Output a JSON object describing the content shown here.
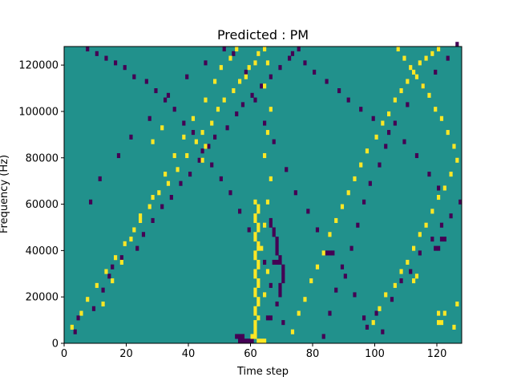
{
  "chart_data": {
    "type": "heatmap",
    "title": "Predicted : PM",
    "xlabel": "Time step",
    "ylabel": "Frequency (Hz)",
    "xlim": [
      0,
      128
    ],
    "ylim": [
      0,
      128000
    ],
    "x_ticks": [
      0,
      20,
      40,
      60,
      80,
      100,
      120
    ],
    "x_tick_labels": [
      "0",
      "20",
      "40",
      "60",
      "80",
      "100",
      "120"
    ],
    "y_ticks": [
      0,
      20000,
      40000,
      60000,
      80000,
      100000,
      120000
    ],
    "y_tick_labels": [
      "0",
      "20000",
      "40000",
      "60000",
      "80000",
      "100000",
      "120000"
    ],
    "grid": false,
    "legend": "none",
    "colormap": "viridis",
    "n_time_steps": 128,
    "n_freq_bins": 64,
    "freq_bin_width_hz": 2000,
    "colors": {
      "background": "#21918c",
      "low": "#440154",
      "high": "#fde725"
    },
    "low_cells": [
      [
        3,
        2
      ],
      [
        4,
        5
      ],
      [
        9,
        7
      ],
      [
        12,
        11
      ],
      [
        14,
        14
      ],
      [
        15,
        16
      ],
      [
        18,
        18
      ],
      [
        23,
        20
      ],
      [
        25,
        23
      ],
      [
        28,
        26
      ],
      [
        31,
        29
      ],
      [
        34,
        31
      ],
      [
        37,
        34
      ],
      [
        40,
        36
      ],
      [
        43,
        39
      ],
      [
        46,
        42
      ],
      [
        48,
        44
      ],
      [
        52,
        46
      ],
      [
        55,
        49
      ],
      [
        57,
        51
      ],
      [
        60,
        53
      ],
      [
        63,
        55
      ],
      [
        66,
        57
      ],
      [
        69,
        59
      ],
      [
        72,
        61
      ],
      [
        75,
        63
      ],
      [
        97,
        3
      ],
      [
        100,
        6
      ],
      [
        105,
        9
      ],
      [
        108,
        13
      ],
      [
        111,
        15
      ],
      [
        114,
        19
      ],
      [
        118,
        22
      ],
      [
        121,
        25
      ],
      [
        124,
        27
      ],
      [
        127,
        30
      ],
      [
        120,
        33
      ],
      [
        117,
        36
      ],
      [
        113,
        40
      ],
      [
        109,
        43
      ],
      [
        104,
        45
      ],
      [
        99,
        48
      ],
      [
        95,
        50
      ],
      [
        91,
        52
      ],
      [
        88,
        54
      ],
      [
        84,
        56
      ],
      [
        80,
        58
      ],
      [
        77,
        60
      ],
      [
        73,
        62
      ],
      [
        70,
        4
      ],
      [
        68,
        8
      ],
      [
        66,
        12
      ],
      [
        64,
        17
      ],
      [
        62,
        21
      ],
      [
        59,
        24
      ],
      [
        56,
        28
      ],
      [
        53,
        32
      ],
      [
        50,
        35
      ],
      [
        47,
        38
      ],
      [
        44,
        41
      ],
      [
        41,
        45
      ],
      [
        38,
        47
      ],
      [
        35,
        50
      ],
      [
        32,
        52
      ],
      [
        29,
        54
      ],
      [
        26,
        56
      ],
      [
        22,
        57
      ],
      [
        19,
        59
      ],
      [
        16,
        60
      ],
      [
        13,
        61
      ],
      [
        10,
        62
      ],
      [
        7,
        63
      ],
      [
        69,
        10
      ],
      [
        69,
        11
      ],
      [
        69,
        12
      ],
      [
        70,
        13
      ],
      [
        70,
        14
      ],
      [
        70,
        15
      ],
      [
        70,
        16
      ],
      [
        69,
        17
      ],
      [
        69,
        18
      ],
      [
        68,
        19
      ],
      [
        68,
        20
      ],
      [
        68,
        21
      ],
      [
        68,
        22
      ],
      [
        67,
        23
      ],
      [
        67,
        24
      ],
      [
        66,
        25
      ],
      [
        66,
        26
      ],
      [
        83,
        1
      ],
      [
        85,
        6
      ],
      [
        87,
        11
      ],
      [
        89,
        16
      ],
      [
        92,
        20
      ],
      [
        94,
        25
      ],
      [
        96,
        30
      ],
      [
        98,
        34
      ],
      [
        101,
        38
      ],
      [
        103,
        42
      ],
      [
        106,
        47
      ],
      [
        110,
        51
      ],
      [
        115,
        55
      ],
      [
        119,
        58
      ],
      [
        123,
        61
      ],
      [
        126,
        64
      ],
      [
        8,
        30
      ],
      [
        11,
        35
      ],
      [
        17,
        40
      ],
      [
        21,
        44
      ],
      [
        27,
        48
      ],
      [
        33,
        53
      ],
      [
        39,
        57
      ],
      [
        45,
        60
      ],
      [
        51,
        63
      ],
      [
        54,
        62
      ],
      [
        58,
        58
      ],
      [
        61,
        52
      ],
      [
        64,
        47
      ],
      [
        67,
        43
      ],
      [
        71,
        37
      ],
      [
        74,
        32
      ],
      [
        78,
        28
      ],
      [
        81,
        24
      ],
      [
        86,
        19
      ],
      [
        90,
        14
      ],
      [
        93,
        10
      ],
      [
        96,
        5
      ],
      [
        102,
        2
      ],
      [
        67,
        17
      ],
      [
        68,
        17
      ],
      [
        65,
        5
      ],
      [
        66,
        5
      ],
      [
        119,
        20
      ],
      [
        120,
        20
      ],
      [
        121,
        22
      ],
      [
        122,
        22
      ],
      [
        84,
        19
      ],
      [
        85,
        19
      ],
      [
        55,
        1
      ],
      [
        56,
        1
      ],
      [
        57,
        0
      ],
      [
        58,
        0
      ],
      [
        59,
        0
      ],
      [
        60,
        0
      ],
      [
        56,
        0
      ],
      [
        57,
        1
      ]
    ],
    "high_cells": [
      [
        60,
        1
      ],
      [
        61,
        1
      ],
      [
        62,
        0
      ],
      [
        63,
        0
      ],
      [
        64,
        0
      ],
      [
        61,
        2
      ],
      [
        61,
        3
      ],
      [
        61,
        4
      ],
      [
        62,
        5
      ],
      [
        61,
        6
      ],
      [
        61,
        7
      ],
      [
        62,
        8
      ],
      [
        62,
        9
      ],
      [
        61,
        10
      ],
      [
        61,
        11
      ],
      [
        62,
        12
      ],
      [
        62,
        13
      ],
      [
        61,
        14
      ],
      [
        61,
        15
      ],
      [
        62,
        16
      ],
      [
        62,
        17
      ],
      [
        61,
        18
      ],
      [
        61,
        19
      ],
      [
        62,
        20
      ],
      [
        62,
        21
      ],
      [
        61,
        22
      ],
      [
        61,
        23
      ],
      [
        62,
        24
      ],
      [
        62,
        25
      ],
      [
        61,
        26
      ],
      [
        61,
        27
      ],
      [
        62,
        28
      ],
      [
        62,
        29
      ],
      [
        61,
        30
      ],
      [
        64,
        10
      ],
      [
        65,
        15
      ],
      [
        63,
        20
      ],
      [
        64,
        25
      ],
      [
        65,
        30
      ],
      [
        66,
        35
      ],
      [
        64,
        40
      ],
      [
        65,
        45
      ],
      [
        66,
        50
      ],
      [
        64,
        55
      ],
      [
        65,
        60
      ],
      [
        2,
        3
      ],
      [
        5,
        6
      ],
      [
        7,
        9
      ],
      [
        10,
        12
      ],
      [
        13,
        15
      ],
      [
        16,
        18
      ],
      [
        19,
        21
      ],
      [
        22,
        24
      ],
      [
        24,
        27
      ],
      [
        27,
        29
      ],
      [
        30,
        32
      ],
      [
        33,
        34
      ],
      [
        36,
        37
      ],
      [
        39,
        40
      ],
      [
        42,
        43
      ],
      [
        44,
        45
      ],
      [
        47,
        47
      ],
      [
        49,
        50
      ],
      [
        51,
        52
      ],
      [
        54,
        54
      ],
      [
        56,
        56
      ],
      [
        58,
        57
      ],
      [
        59,
        59
      ],
      [
        61,
        60
      ],
      [
        62,
        62
      ],
      [
        64,
        63
      ],
      [
        99,
        4
      ],
      [
        101,
        7
      ],
      [
        103,
        10
      ],
      [
        106,
        12
      ],
      [
        108,
        15
      ],
      [
        110,
        17
      ],
      [
        112,
        20
      ],
      [
        114,
        23
      ],
      [
        116,
        25
      ],
      [
        118,
        28
      ],
      [
        120,
        31
      ],
      [
        122,
        33
      ],
      [
        124,
        36
      ],
      [
        126,
        39
      ],
      [
        125,
        42
      ],
      [
        123,
        45
      ],
      [
        121,
        48
      ],
      [
        119,
        50
      ],
      [
        117,
        53
      ],
      [
        115,
        55
      ],
      [
        113,
        57
      ],
      [
        111,
        59
      ],
      [
        109,
        61
      ],
      [
        107,
        63
      ],
      [
        73,
        2
      ],
      [
        75,
        6
      ],
      [
        77,
        9
      ],
      [
        79,
        13
      ],
      [
        81,
        16
      ],
      [
        83,
        19
      ],
      [
        85,
        23
      ],
      [
        87,
        26
      ],
      [
        89,
        29
      ],
      [
        91,
        32
      ],
      [
        93,
        35
      ],
      [
        95,
        38
      ],
      [
        97,
        41
      ],
      [
        100,
        44
      ],
      [
        102,
        47
      ],
      [
        104,
        49
      ],
      [
        106,
        52
      ],
      [
        108,
        54
      ],
      [
        110,
        56
      ],
      [
        112,
        58
      ],
      [
        114,
        60
      ],
      [
        116,
        61
      ],
      [
        118,
        62
      ],
      [
        120,
        63
      ],
      [
        12,
        8
      ],
      [
        15,
        13
      ],
      [
        18,
        17
      ],
      [
        21,
        22
      ],
      [
        24,
        26
      ],
      [
        28,
        31
      ],
      [
        32,
        36
      ],
      [
        35,
        40
      ],
      [
        38,
        44
      ],
      [
        41,
        48
      ],
      [
        45,
        52
      ],
      [
        48,
        56
      ],
      [
        50,
        59
      ],
      [
        53,
        61
      ],
      [
        55,
        63
      ],
      [
        120,
        4
      ],
      [
        121,
        4
      ],
      [
        122,
        6
      ],
      [
        120,
        6
      ],
      [
        125,
        3
      ],
      [
        126,
        8
      ],
      [
        112,
        13
      ],
      [
        113,
        14
      ],
      [
        44,
        39
      ],
      [
        45,
        42
      ],
      [
        28,
        43
      ],
      [
        31,
        46
      ]
    ]
  }
}
